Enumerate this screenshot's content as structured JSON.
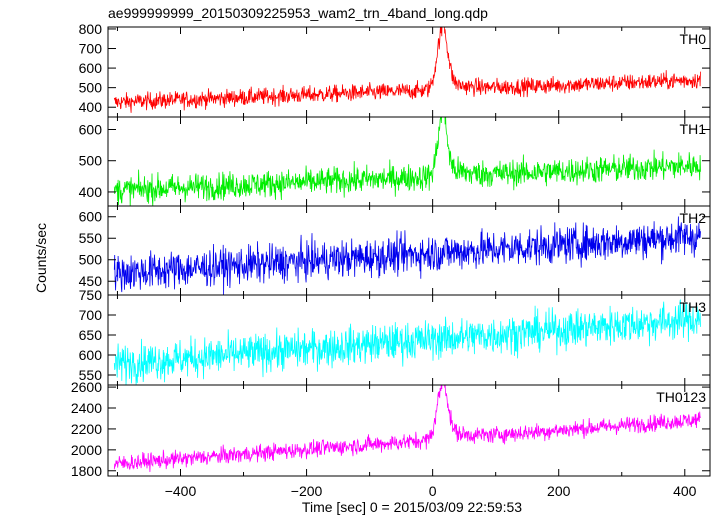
{
  "chart_data": {
    "type": "line",
    "title": "ae999999999_20150309225953_wam2_trn_4band_long.qdp",
    "xlabel": "Time [sec] 0 = 2015/03/09 22:59:53",
    "ylabel": "Counts/sec",
    "xlim": [
      -515,
      440
    ],
    "x_ticks": [
      -400,
      -200,
      0,
      200,
      400
    ],
    "x_tick_labels": [
      "−400",
      "−200",
      "0",
      "200",
      "400"
    ],
    "x_data_range": [
      -505,
      425
    ],
    "grid": false,
    "panels": [
      {
        "name": "TH0",
        "color": "#ff0000",
        "ylim": [
          350,
          810
        ],
        "yticks": [
          400,
          500,
          600,
          700,
          800
        ],
        "baseline_start": 425,
        "baseline_end": 540,
        "noise": 22,
        "peak": {
          "x": 15,
          "value": 790,
          "width": 8
        },
        "peak_shoulder": 60
      },
      {
        "name": "TH1",
        "color": "#00ee00",
        "ylim": [
          355,
          640
        ],
        "yticks": [
          400,
          500,
          600
        ],
        "baseline_start": 405,
        "baseline_end": 485,
        "noise": 22,
        "peak": {
          "x": 15,
          "value": 640,
          "width": 7
        },
        "peak_shoulder": 40
      },
      {
        "name": "TH2",
        "color": "#0000ee",
        "ylim": [
          418,
          625
        ],
        "yticks": [
          450,
          500,
          550,
          600
        ],
        "baseline_start": 468,
        "baseline_end": 555,
        "noise": 22,
        "peak": null,
        "peak_shoulder": 0
      },
      {
        "name": "TH3",
        "color": "#00ffff",
        "ylim": [
          525,
          750
        ],
        "yticks": [
          550,
          600,
          650,
          700,
          750
        ],
        "baseline_start": 578,
        "baseline_end": 690,
        "noise": 24,
        "peak": null,
        "peak_shoulder": 0
      },
      {
        "name": "TH0123",
        "color": "#ff00ff",
        "ylim": [
          1750,
          2620
        ],
        "yticks": [
          1800,
          2000,
          2200,
          2400,
          2600
        ],
        "baseline_start": 1865,
        "baseline_end": 2290,
        "noise": 40,
        "peak": {
          "x": 15,
          "value": 2610,
          "width": 8
        },
        "peak_shoulder": 120
      }
    ]
  }
}
